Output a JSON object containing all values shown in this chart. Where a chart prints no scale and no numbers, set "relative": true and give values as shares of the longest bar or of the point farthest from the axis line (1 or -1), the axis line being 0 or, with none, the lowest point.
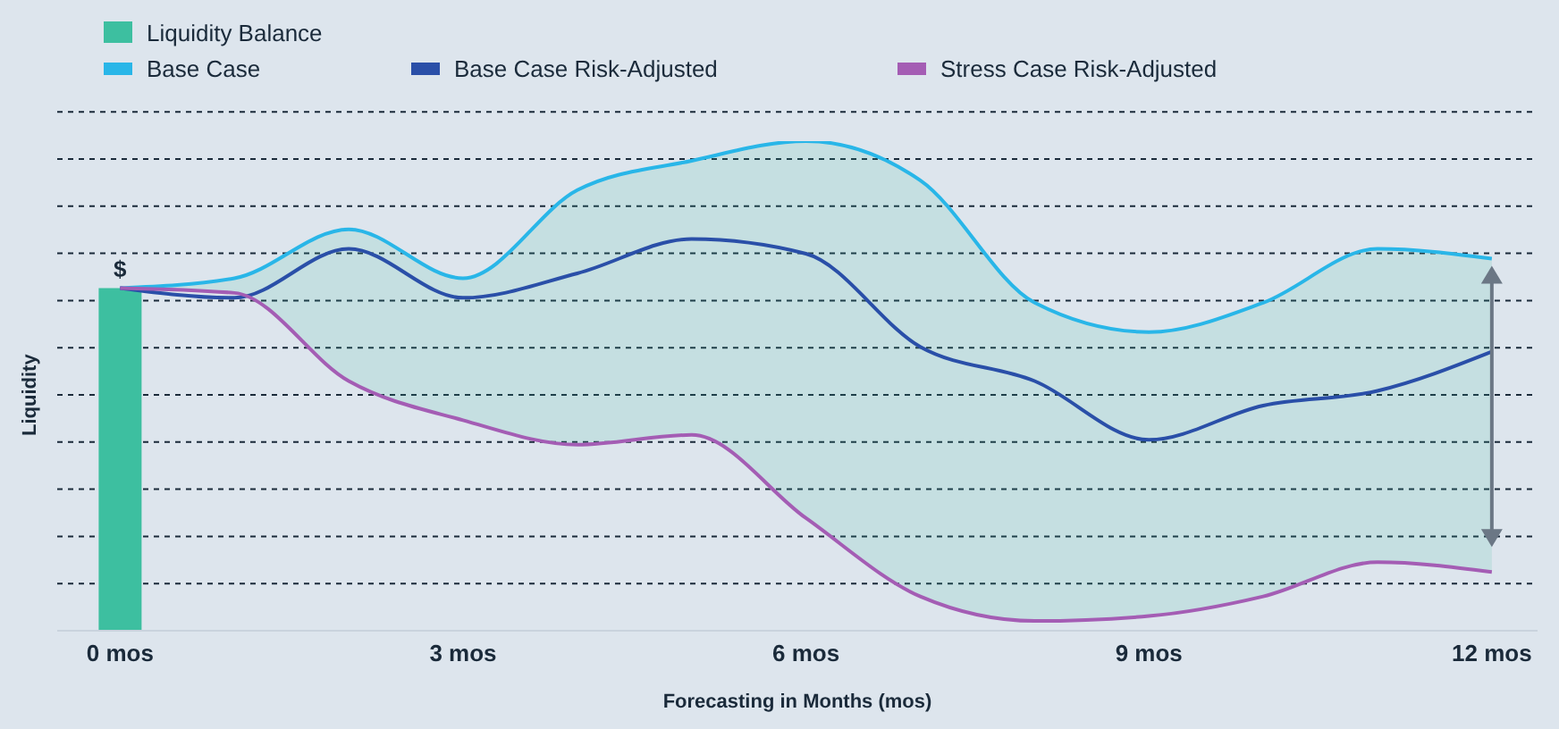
{
  "chart_data": {
    "type": "line",
    "relative": true,
    "xlabel": "Forecasting in Months (mos)",
    "ylabel": "Liquidity",
    "x": [
      0,
      1,
      2,
      3,
      4,
      5,
      6,
      7,
      8,
      9,
      10,
      11,
      12
    ],
    "xlim": [
      -0.55,
      12.4
    ],
    "xticks": [
      {
        "value": 0,
        "label": "0 mos"
      },
      {
        "value": 3,
        "label": "3 mos"
      },
      {
        "value": 6,
        "label": "6 mos"
      },
      {
        "value": 9,
        "label": "9 mos"
      },
      {
        "value": 12,
        "label": "12 mos"
      }
    ],
    "series": [
      {
        "name": "Liquidity Balance",
        "type": "bar",
        "color": "#3dbfa0",
        "x": [
          0
        ],
        "values": [
          0.7
        ]
      },
      {
        "name": "Base Case",
        "color": "#29b6e8",
        "values": [
          0.7,
          0.72,
          0.82,
          0.72,
          0.9,
          0.96,
          1.0,
          0.92,
          0.67,
          0.61,
          0.67,
          0.78,
          0.76
        ]
      },
      {
        "name": "Base Case Risk-Adjusted",
        "color": "#2a4fa8",
        "values": [
          0.7,
          0.68,
          0.78,
          0.68,
          0.73,
          0.8,
          0.77,
          0.58,
          0.51,
          0.39,
          0.46,
          0.49,
          0.57
        ],
        "upper": [
          0.7,
          0.72,
          0.82,
          0.72,
          0.9,
          0.96,
          1.0,
          0.92,
          0.67,
          0.61,
          0.67,
          0.78,
          0.76
        ],
        "lower": [
          0.7,
          0.69,
          0.51,
          0.43,
          0.38,
          0.4,
          0.23,
          0.07,
          0.02,
          0.03,
          0.07,
          0.14,
          0.12
        ]
      },
      {
        "name": "Stress Case Risk-Adjusted",
        "color": "#a45db4",
        "values": [
          0.7,
          0.69,
          0.51,
          0.43,
          0.38,
          0.4,
          0.23,
          0.07,
          0.02,
          0.03,
          0.07,
          0.14,
          0.12
        ]
      }
    ],
    "annotations": [
      {
        "text": "$",
        "x": 0,
        "y": 0.7
      }
    ],
    "grid": "y",
    "legend": "top left",
    "marker": "none"
  }
}
